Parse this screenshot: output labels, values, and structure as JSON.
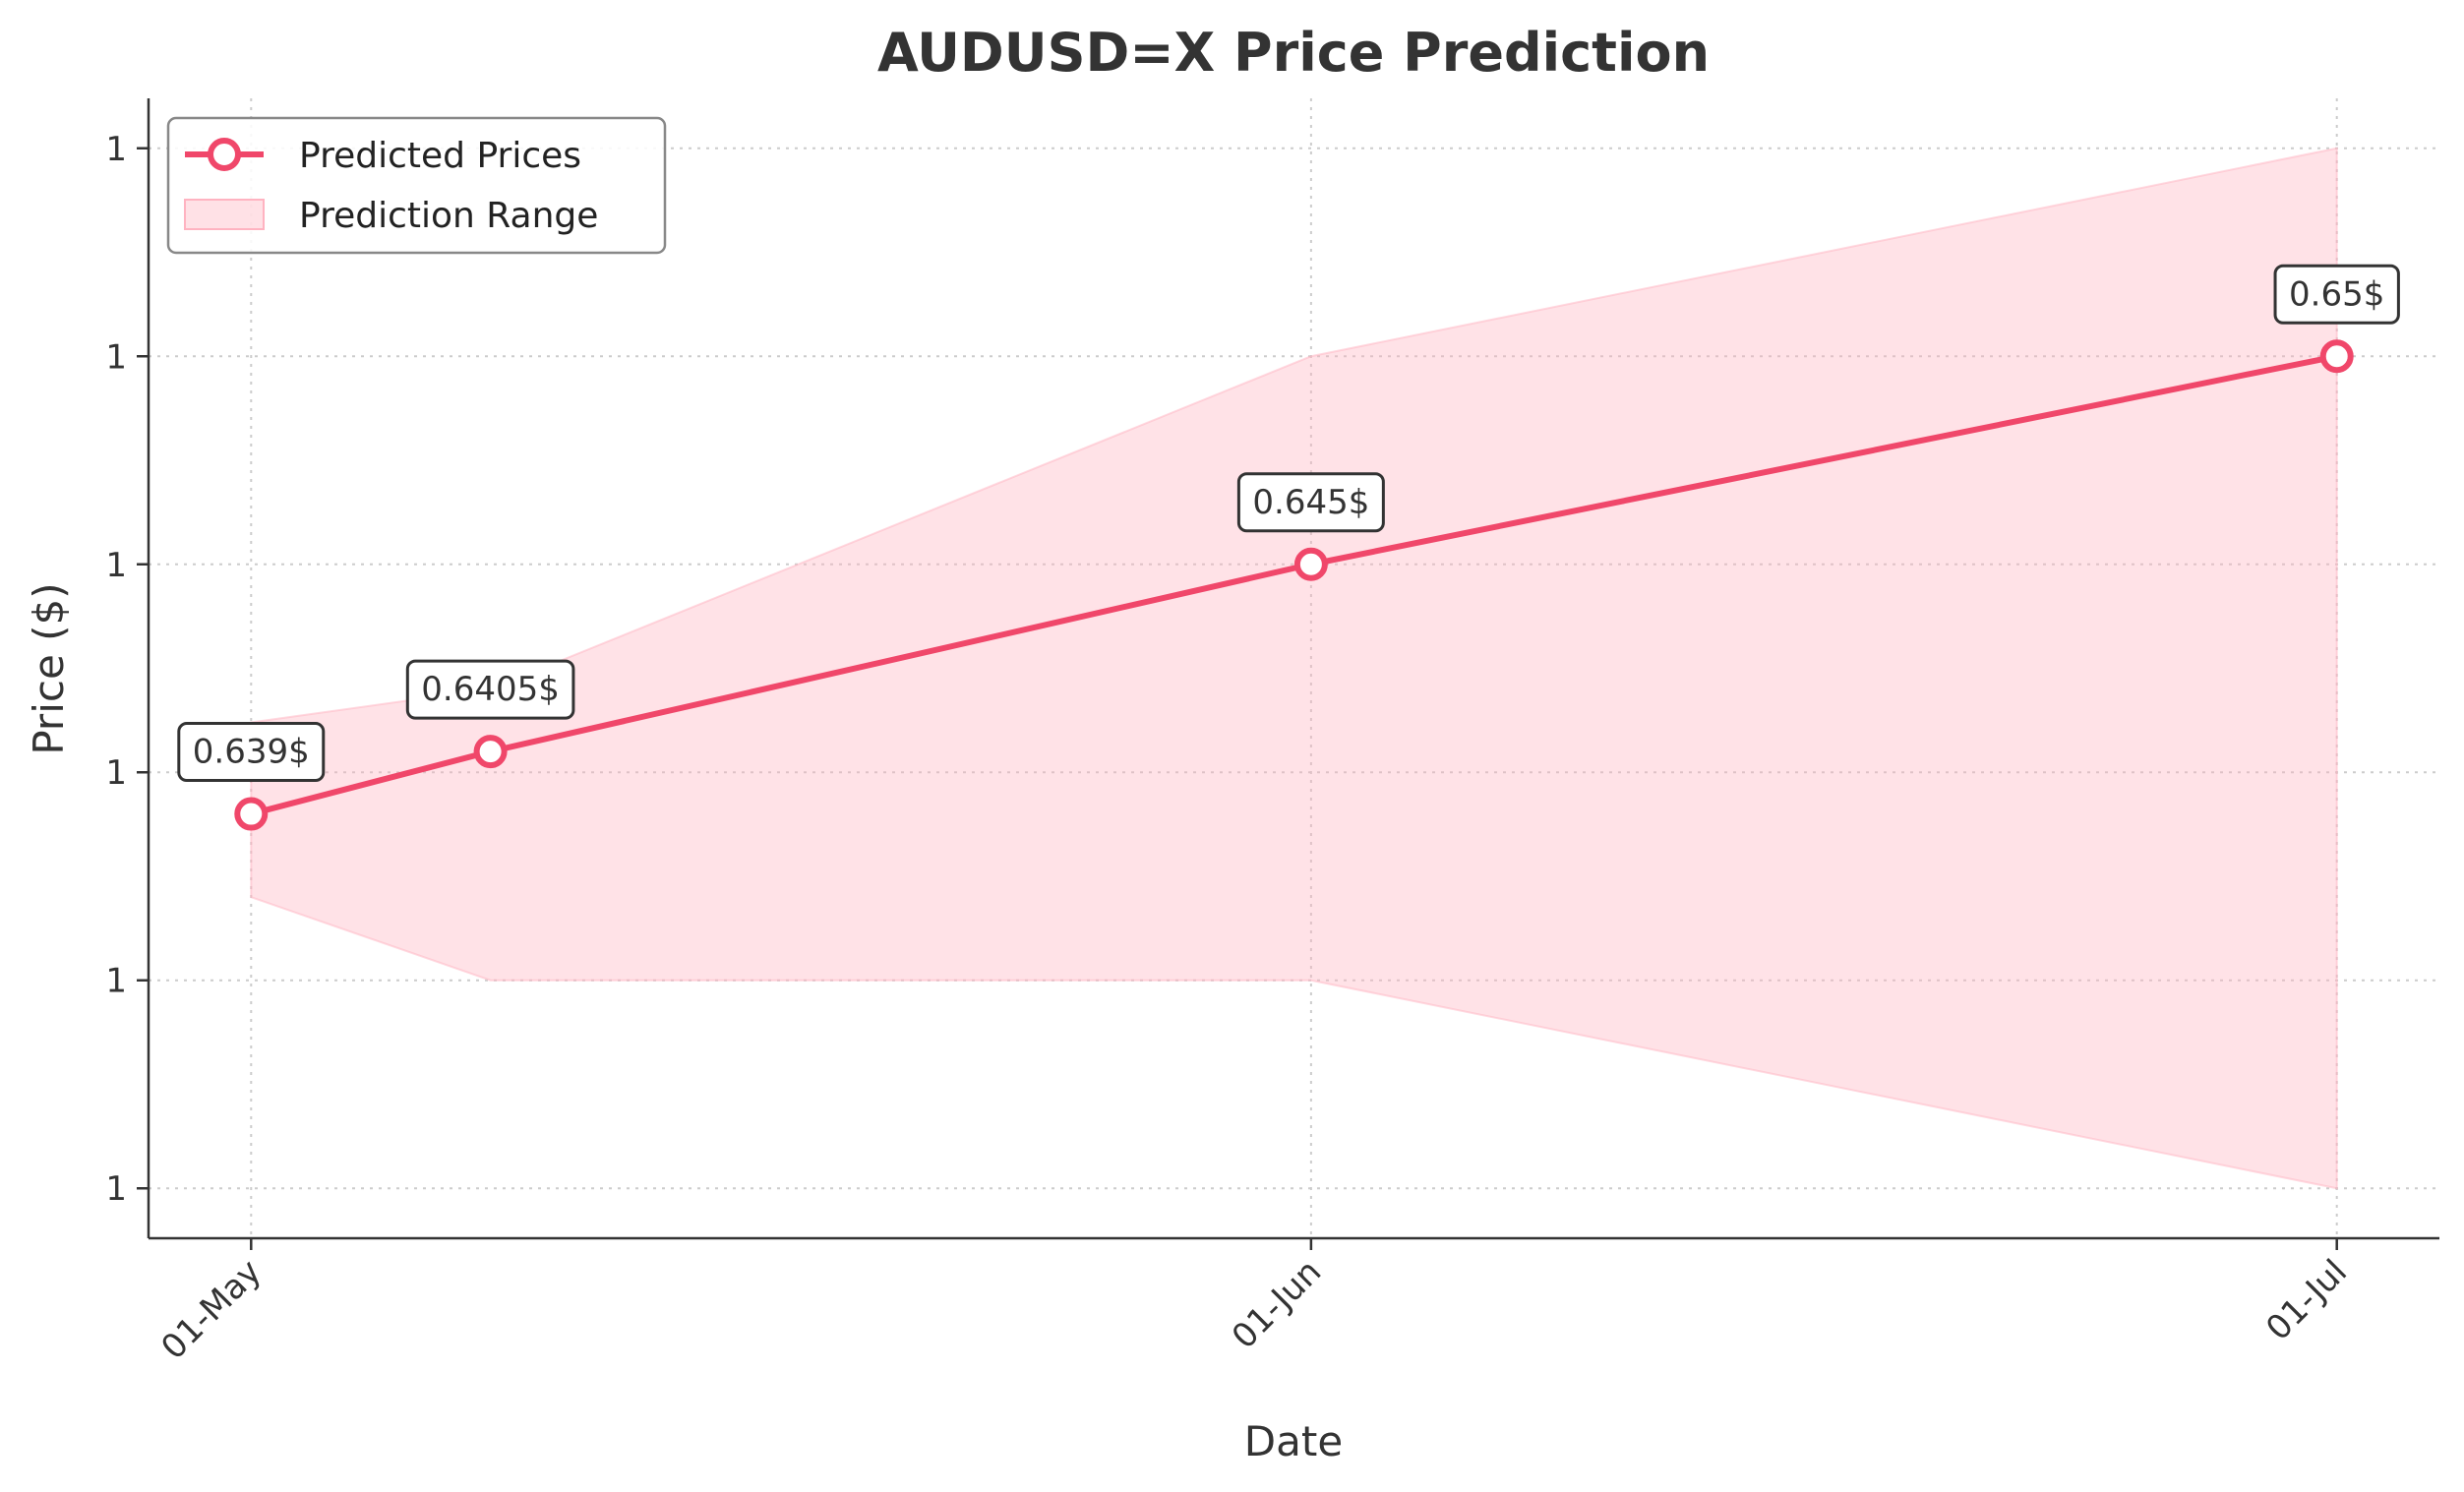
{
  "chart_data": {
    "type": "line",
    "title": "AUDUSD=X Price Prediction",
    "xlabel": "Date",
    "ylabel": "Price ($)",
    "x_ticks": [
      {
        "date": "2024-05-01",
        "label": "01-May"
      },
      {
        "date": "2024-06-01",
        "label": "01-Jun"
      },
      {
        "date": "2024-07-01",
        "label": "01-Jul"
      }
    ],
    "y_ticks": [
      {
        "value": 0.63,
        "label": "1"
      },
      {
        "value": 0.635,
        "label": "1"
      },
      {
        "value": 0.64,
        "label": "1"
      },
      {
        "value": 0.645,
        "label": "1"
      },
      {
        "value": 0.65,
        "label": "1"
      },
      {
        "value": 0.655,
        "label": "1"
      }
    ],
    "xlim": [
      "2024-04-28",
      "2024-07-04"
    ],
    "ylim": [
      0.6288,
      0.6562
    ],
    "grid": true,
    "legend_position": "top-left",
    "series": [
      {
        "name": "Predicted Prices",
        "type": "line",
        "color": "#f0476a",
        "points": [
          {
            "x": "2024-05-01",
            "y": 0.639,
            "label": "0.639$"
          },
          {
            "x": "2024-05-08",
            "y": 0.6405,
            "label": "0.6405$"
          },
          {
            "x": "2024-06-01",
            "y": 0.645,
            "label": "0.645$"
          },
          {
            "x": "2024-07-01",
            "y": 0.65,
            "label": "0.65$"
          }
        ]
      },
      {
        "name": "Prediction Range",
        "type": "area",
        "color": "#ffb3c1",
        "x": [
          "2024-05-01",
          "2024-05-08",
          "2024-06-01",
          "2024-07-01"
        ],
        "lower": [
          0.637,
          0.635,
          0.635,
          0.63
        ],
        "upper": [
          0.6412,
          0.642,
          0.65,
          0.655
        ]
      }
    ]
  }
}
